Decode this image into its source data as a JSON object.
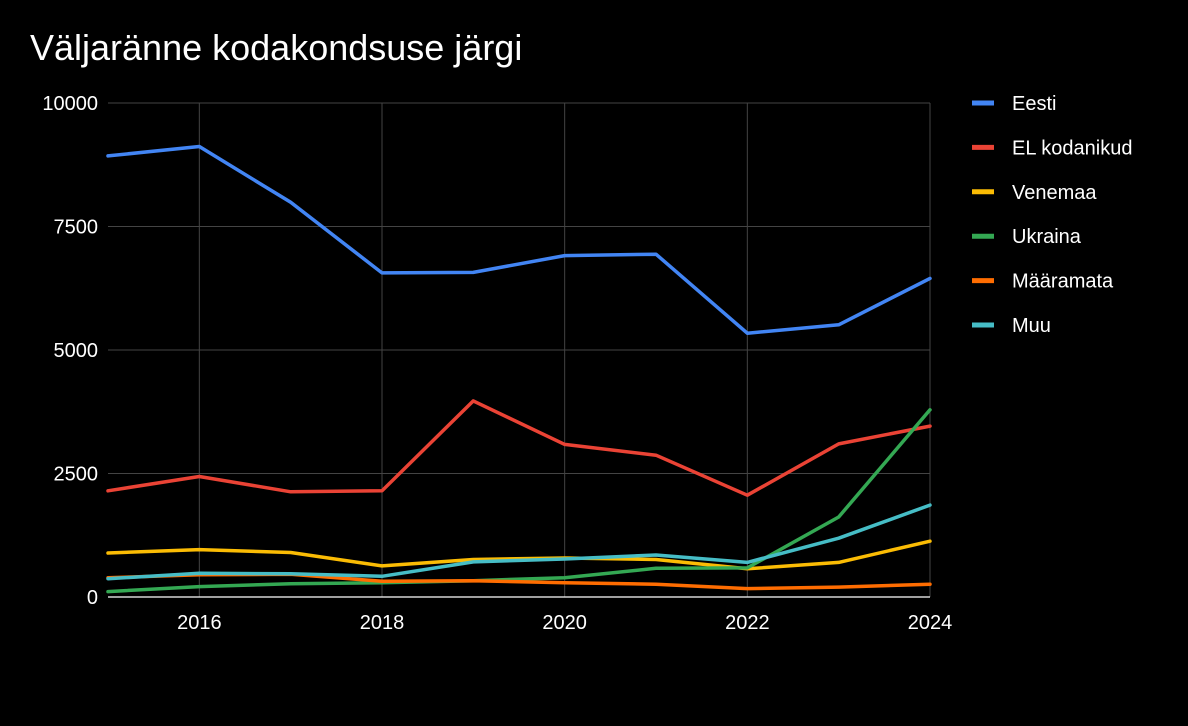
{
  "chart_data": {
    "type": "line",
    "title": "Väljaränne kodakondsuse järgi",
    "xlabel": "",
    "ylabel": "",
    "x": [
      2015,
      2016,
      2017,
      2018,
      2019,
      2020,
      2021,
      2022,
      2023,
      2024
    ],
    "xlim": [
      2015,
      2024
    ],
    "ylim": [
      0,
      10000
    ],
    "x_ticks": [
      "2016",
      "2018",
      "2020",
      "2022",
      "2024"
    ],
    "y_ticks": [
      "0",
      "2500",
      "5000",
      "7500",
      "10000"
    ],
    "grid": true,
    "legend_position": "right",
    "series": [
      {
        "name": "Eesti",
        "color": "#4285f4",
        "values": [
          8930,
          9120,
          7990,
          6560,
          6570,
          6910,
          6940,
          5340,
          5510,
          6450
        ]
      },
      {
        "name": "EL kodanikud",
        "color": "#ea4335",
        "values": [
          2150,
          2440,
          2130,
          2150,
          3970,
          3090,
          2870,
          2060,
          3100,
          3460
        ]
      },
      {
        "name": "Venemaa",
        "color": "#fbbc04",
        "values": [
          890,
          960,
          900,
          630,
          760,
          790,
          760,
          570,
          700,
          1130
        ]
      },
      {
        "name": "Ukraina",
        "color": "#34a853",
        "values": [
          110,
          210,
          270,
          290,
          330,
          390,
          580,
          590,
          1620,
          3790
        ]
      },
      {
        "name": "Määramata",
        "color": "#ff6d01",
        "values": [
          390,
          450,
          460,
          320,
          330,
          290,
          260,
          170,
          200,
          260
        ]
      },
      {
        "name": "Muu",
        "color": "#46bdc6",
        "values": [
          370,
          480,
          470,
          420,
          710,
          770,
          850,
          700,
          1190,
          1860
        ]
      }
    ]
  }
}
